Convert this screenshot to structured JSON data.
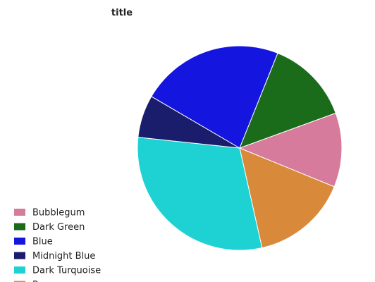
{
  "chart_data": {
    "type": "pie",
    "title": "title",
    "legend_position": "left",
    "series": [
      {
        "name": "Bubblegum",
        "value": 11.5,
        "color": "#d67b9b"
      },
      {
        "name": "Dark Green",
        "value": 13.1,
        "color": "#1a6b1a"
      },
      {
        "name": "Blue",
        "value": 22.2,
        "color": "#1515e0"
      },
      {
        "name": "Midnight Blue",
        "value": 6.6,
        "color": "#1a1d6b"
      },
      {
        "name": "Dark Turquoise",
        "value": 29.6,
        "color": "#1ed2d4"
      },
      {
        "name": "Peru",
        "value": 15.0,
        "color": "#d8893a"
      }
    ]
  }
}
